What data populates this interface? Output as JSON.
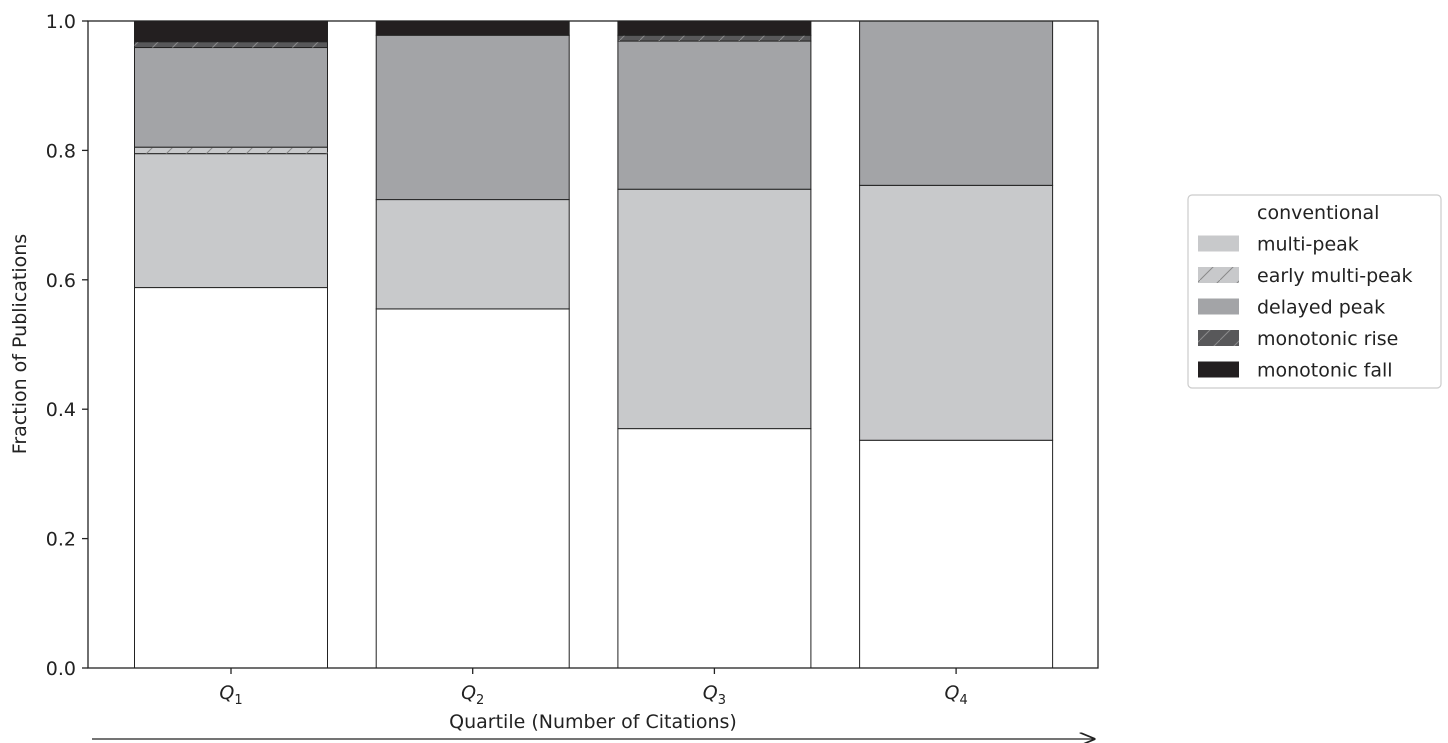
{
  "chart_data": {
    "type": "bar",
    "stacked": true,
    "categories": [
      "Q",
      "Q",
      "Q",
      "Q"
    ],
    "category_subscripts": [
      "1",
      "2",
      "3",
      "4"
    ],
    "xlabel": "Quartile (Number of Citations)",
    "ylabel": "Fraction of Publications",
    "ylim": [
      0,
      1.0
    ],
    "yticks": [
      "0.0",
      "0.2",
      "0.4",
      "0.6",
      "0.8",
      "1.0"
    ],
    "grid": false,
    "legend_position": "right",
    "series": [
      {
        "name": "conventional",
        "values": [
          0.588,
          0.555,
          0.37,
          0.352
        ],
        "color": "#ffffff",
        "hatch": false
      },
      {
        "name": "multi-peak",
        "values": [
          0.207,
          0.169,
          0.37,
          0.394
        ],
        "color": "#c8c9cb",
        "hatch": false
      },
      {
        "name": "early multi-peak",
        "values": [
          0.01,
          0.0,
          0.0,
          0.0
        ],
        "color": "#c8c9cb",
        "hatch": true
      },
      {
        "name": "delayed peak",
        "values": [
          0.154,
          0.254,
          0.229,
          0.254
        ],
        "color": "#a3a4a7",
        "hatch": false
      },
      {
        "name": "monotonic rise",
        "values": [
          0.009,
          0.0,
          0.009,
          0.0
        ],
        "color": "#58585a",
        "hatch": true
      },
      {
        "name": "monotonic fall",
        "values": [
          0.032,
          0.022,
          0.022,
          0.0
        ],
        "color": "#231f20",
        "hatch": false
      }
    ]
  }
}
